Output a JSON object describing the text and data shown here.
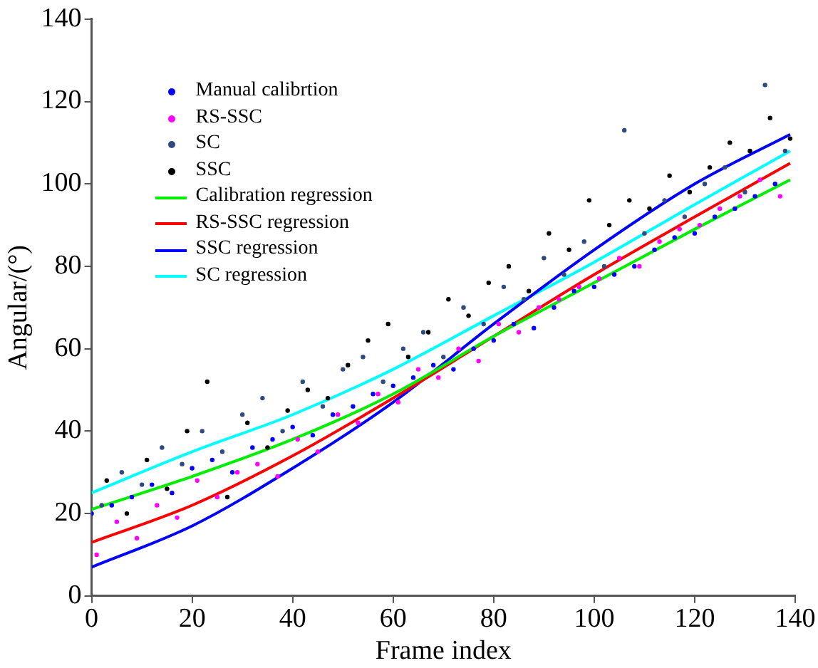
{
  "chart_data": {
    "type": "scatter",
    "xlabel": "Frame index",
    "ylabel": "Angular/(°)",
    "xlim": [
      0,
      140
    ],
    "ylim": [
      0,
      140
    ],
    "xticks": [
      0,
      20,
      40,
      60,
      80,
      100,
      120,
      140
    ],
    "yticks": [
      0,
      20,
      40,
      60,
      80,
      100,
      120,
      140
    ],
    "grid": false,
    "legend": "top left",
    "series": [
      {
        "name": "Manual calibrtion",
        "marker": "circle",
        "color": "#0000ff",
        "x": [
          0,
          4,
          8,
          12,
          16,
          20,
          24,
          28,
          32,
          36,
          40,
          44,
          48,
          52,
          56,
          60,
          64,
          68,
          72,
          76,
          80,
          84,
          88,
          92,
          96,
          100,
          104,
          108,
          112,
          116,
          120,
          124,
          128,
          132,
          136
        ],
        "values": [
          20,
          22,
          24,
          27,
          25,
          31,
          33,
          30,
          36,
          38,
          41,
          39,
          44,
          46,
          49,
          51,
          53,
          56,
          55,
          60,
          62,
          66,
          65,
          70,
          74,
          75,
          78,
          80,
          84,
          87,
          88,
          92,
          94,
          97,
          100
        ]
      },
      {
        "name": "RS-SSC",
        "marker": "circle",
        "color": "#ff00ff",
        "x": [
          1,
          5,
          9,
          13,
          17,
          21,
          25,
          29,
          33,
          37,
          41,
          45,
          49,
          53,
          57,
          61,
          65,
          69,
          73,
          77,
          81,
          85,
          89,
          93,
          97,
          101,
          105,
          109,
          113,
          117,
          121,
          125,
          129,
          133,
          137
        ],
        "values": [
          10,
          18,
          14,
          22,
          19,
          28,
          24,
          30,
          32,
          29,
          38,
          35,
          44,
          42,
          49,
          47,
          55,
          53,
          60,
          57,
          66,
          64,
          70,
          72,
          75,
          77,
          82,
          80,
          86,
          89,
          90,
          94,
          97,
          101,
          97
        ]
      },
      {
        "name": "SC",
        "marker": "circle",
        "color": "#2f4a80",
        "x": [
          2,
          6,
          10,
          14,
          18,
          22,
          26,
          30,
          34,
          38,
          42,
          46,
          50,
          54,
          58,
          62,
          66,
          70,
          74,
          78,
          82,
          86,
          90,
          94,
          98,
          102,
          106,
          110,
          114,
          118,
          122,
          126,
          130,
          134,
          138
        ],
        "values": [
          22,
          30,
          27,
          36,
          32,
          40,
          35,
          44,
          48,
          40,
          52,
          46,
          55,
          58,
          52,
          60,
          64,
          58,
          70,
          66,
          75,
          72,
          82,
          78,
          86,
          80,
          113,
          88,
          96,
          92,
          100,
          104,
          98,
          124,
          108
        ]
      },
      {
        "name": "SSC",
        "marker": "circle",
        "color": "#000000",
        "x": [
          3,
          7,
          11,
          15,
          19,
          23,
          27,
          31,
          35,
          39,
          43,
          47,
          51,
          55,
          59,
          63,
          67,
          71,
          75,
          79,
          83,
          87,
          91,
          95,
          99,
          103,
          107,
          111,
          115,
          119,
          123,
          127,
          131,
          135,
          139
        ],
        "values": [
          28,
          20,
          33,
          26,
          40,
          52,
          24,
          42,
          36,
          45,
          50,
          48,
          56,
          62,
          66,
          58,
          64,
          72,
          68,
          76,
          80,
          74,
          88,
          84,
          96,
          90,
          96,
          94,
          102,
          98,
          104,
          110,
          108,
          116,
          111
        ]
      },
      {
        "name": "Calibration regression",
        "type": "line",
        "marker": "none",
        "color": "#00ee00",
        "x": [
          0,
          20,
          40,
          60,
          80,
          100,
          120,
          139
        ],
        "values": [
          21,
          29,
          38,
          49,
          63,
          76,
          89,
          101
        ]
      },
      {
        "name": "RS-SSC regression",
        "type": "line",
        "marker": "none",
        "color": "#ff0000",
        "x": [
          0,
          20,
          40,
          60,
          80,
          100,
          120,
          139
        ],
        "values": [
          13,
          22,
          34,
          48,
          63,
          78,
          92,
          105
        ]
      },
      {
        "name": "SSC regression",
        "type": "line",
        "marker": "none",
        "color": "#0000ff",
        "x": [
          0,
          20,
          40,
          60,
          80,
          100,
          120,
          139
        ],
        "values": [
          7,
          17,
          31,
          47,
          66,
          84,
          100,
          112
        ]
      },
      {
        "name": "SC regression",
        "type": "line",
        "marker": "none",
        "color": "#00ffff",
        "x": [
          0,
          20,
          40,
          60,
          80,
          100,
          120,
          139
        ],
        "values": [
          25,
          35,
          44,
          55,
          68,
          81,
          95,
          108
        ]
      }
    ]
  }
}
